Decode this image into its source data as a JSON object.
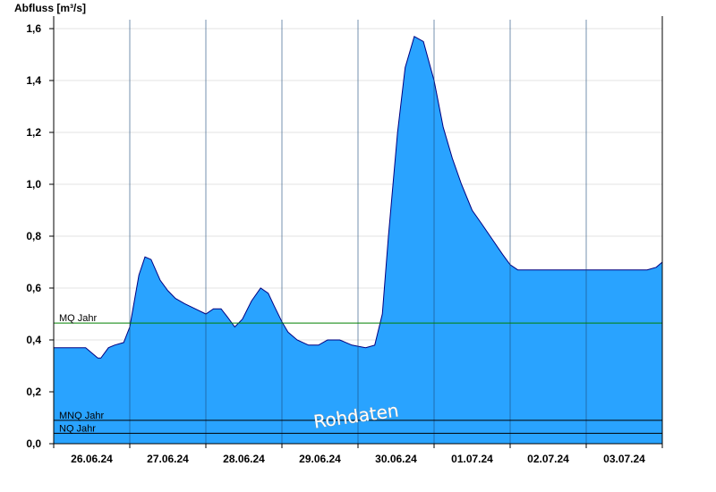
{
  "chart_data": {
    "type": "area",
    "ylabel": "Abfluss [m³/s]",
    "ylim": [
      0,
      1.6
    ],
    "yticks": [
      "0,0",
      "0,2",
      "0,4",
      "0,6",
      "0,8",
      "1,0",
      "1,2",
      "1,4",
      "1,6"
    ],
    "ytick_values": [
      0,
      0.2,
      0.4,
      0.6,
      0.8,
      1.0,
      1.2,
      1.4,
      1.6
    ],
    "x_range_days": [
      "26.06.24 00:00",
      "03.07.24 24:00"
    ],
    "xticks": [
      "26.06.24",
      "27.06.24",
      "28.06.24",
      "29.06.24",
      "30.06.24",
      "01.07.24",
      "02.07.24",
      "03.07.24"
    ],
    "grid": true,
    "fill_color": "#29a3ff",
    "line_color": "#000080",
    "series": [
      {
        "name": "",
        "x_day": [
          0,
          0.42,
          0.5,
          0.58,
          0.62,
          0.72,
          0.8,
          0.92,
          1.0,
          1.06,
          1.12,
          1.2,
          1.28,
          1.34,
          1.4,
          1.5,
          1.6,
          1.72,
          1.86,
          2.0,
          2.1,
          2.2,
          2.28,
          2.38,
          2.48,
          2.6,
          2.72,
          2.82,
          2.9,
          3.0,
          3.08,
          3.2,
          3.35,
          3.48,
          3.6,
          3.76,
          3.92,
          4.1,
          4.22,
          4.32,
          4.4,
          4.52,
          4.62,
          4.74,
          4.86,
          5.0,
          5.12,
          5.24,
          5.36,
          5.5,
          5.62,
          5.76,
          5.9,
          6.0,
          6.1,
          6.24,
          6.38,
          6.5,
          6.62,
          6.74,
          6.86,
          7.0,
          7.3,
          7.42,
          7.6,
          7.8,
          7.92,
          8.0
        ],
        "values": [
          0.37,
          0.37,
          0.35,
          0.33,
          0.33,
          0.37,
          0.38,
          0.39,
          0.45,
          0.55,
          0.65,
          0.72,
          0.71,
          0.67,
          0.63,
          0.59,
          0.56,
          0.54,
          0.52,
          0.5,
          0.52,
          0.52,
          0.49,
          0.45,
          0.48,
          0.55,
          0.6,
          0.58,
          0.53,
          0.47,
          0.43,
          0.4,
          0.38,
          0.38,
          0.4,
          0.4,
          0.38,
          0.37,
          0.38,
          0.5,
          0.8,
          1.2,
          1.45,
          1.57,
          1.55,
          1.4,
          1.22,
          1.1,
          1.0,
          0.9,
          0.85,
          0.79,
          0.73,
          0.69,
          0.67,
          0.67,
          0.67,
          0.67,
          0.67,
          0.67,
          0.67,
          0.67,
          0.67,
          0.67,
          0.67,
          0.67,
          0.68,
          0.7
        ]
      }
    ],
    "reference_lines": [
      {
        "label": "MQ Jahr",
        "value": 0.465,
        "color": "#008000"
      },
      {
        "label": "MNQ Jahr",
        "value": 0.09,
        "color": "#000000"
      },
      {
        "label": "NQ Jahr",
        "value": 0.04,
        "color": "#000000"
      }
    ],
    "watermark": "Rohdaten"
  }
}
